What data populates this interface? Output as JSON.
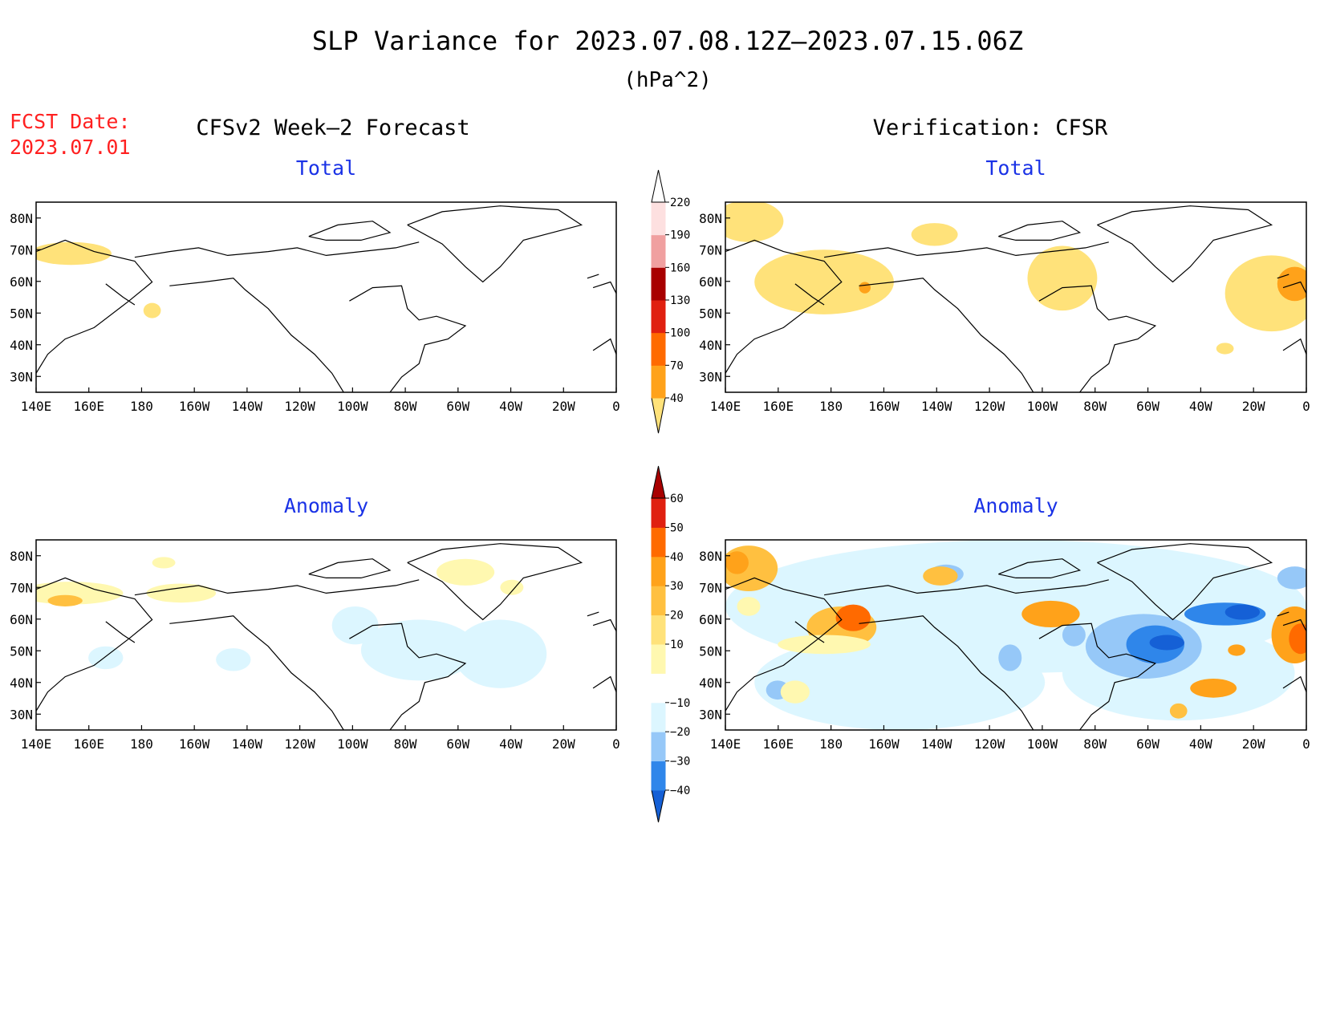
{
  "figure": {
    "title": "SLP Variance for 2023.07.08.12Z–2023.07.15.06Z",
    "units": "(hPa^2)",
    "fcst_label": "FCST Date:",
    "fcst_date": "2023.07.01",
    "left_column_title": "CFSv2 Week–2 Forecast",
    "right_column_title": "Verification: CFSR",
    "colors": {
      "title": "#000000",
      "fcst": "#ff2020",
      "panel_title": "#1a32e6",
      "axis": "#000000"
    }
  },
  "axes": {
    "lon_labels": [
      "140E",
      "160E",
      "180",
      "160W",
      "140W",
      "120W",
      "100W",
      "80W",
      "60W",
      "40W",
      "20W",
      "0"
    ],
    "lat_labels": [
      "80N",
      "70N",
      "60N",
      "50N",
      "40N",
      "30N"
    ],
    "lon_range": [
      140,
      360
    ],
    "lat_range": [
      25,
      85
    ]
  },
  "panels": [
    {
      "id": "forecast-total",
      "title": "Total",
      "field": "total"
    },
    {
      "id": "verification-total",
      "title": "Total",
      "field": "total"
    },
    {
      "id": "forecast-anomaly",
      "title": "Anomaly",
      "field": "anomaly"
    },
    {
      "id": "verification-anomaly",
      "title": "Anomaly",
      "field": "anomaly"
    }
  ],
  "colorbars": {
    "total": {
      "labels": [
        "40",
        "70",
        "100",
        "130",
        "160",
        "190",
        "220"
      ],
      "colors": [
        "#ffe27a",
        "#ffa21a",
        "#ff6a00",
        "#e02010",
        "#a80000",
        "#f0a0a0",
        "#fde0e0",
        "#ffffff"
      ]
    },
    "anomaly": {
      "labels": [
        "−40",
        "−30",
        "−20",
        "−10",
        "10",
        "20",
        "30",
        "40",
        "50",
        "60"
      ],
      "colors": [
        "#1560d6",
        "#2f86ea",
        "#96c8f8",
        "#dcf6ff",
        "#ffffff",
        "#fff8b0",
        "#ffe27a",
        "#ffc040",
        "#ffa21a",
        "#ff6a00",
        "#e02010",
        "#a80000"
      ]
    }
  }
}
